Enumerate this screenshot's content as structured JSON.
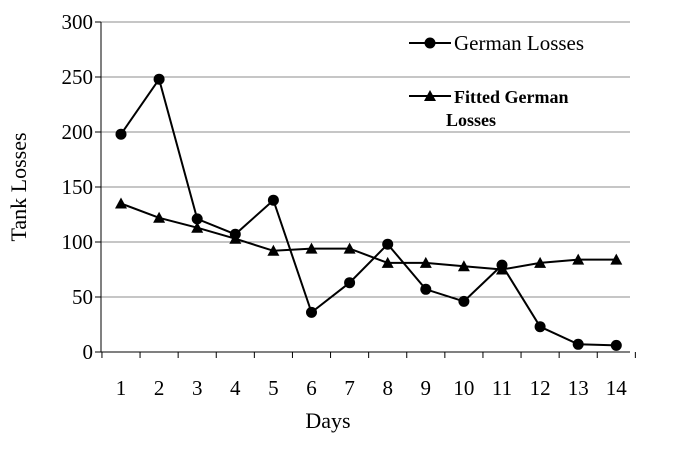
{
  "chart_data": {
    "type": "line",
    "xlabel": "Days",
    "ylabel": "Tank Losses",
    "x": [
      1,
      2,
      3,
      4,
      5,
      6,
      7,
      8,
      9,
      10,
      11,
      12,
      13,
      14
    ],
    "ylim": [
      0,
      300
    ],
    "yticks": [
      0,
      50,
      100,
      150,
      200,
      250,
      300
    ],
    "grid": "horizontal",
    "legend_position": "top-right",
    "series": [
      {
        "name": "German Losses",
        "marker": "circle",
        "values": [
          198,
          248,
          121,
          107,
          138,
          36,
          63,
          98,
          57,
          46,
          79,
          23,
          7,
          6
        ]
      },
      {
        "name": "Fitted German Losses",
        "name_lines": [
          "Fitted German",
          "Losses"
        ],
        "marker": "triangle",
        "values": [
          135,
          122,
          113,
          103,
          92,
          94,
          94,
          81,
          81,
          78,
          75,
          81,
          84,
          84
        ]
      }
    ]
  }
}
